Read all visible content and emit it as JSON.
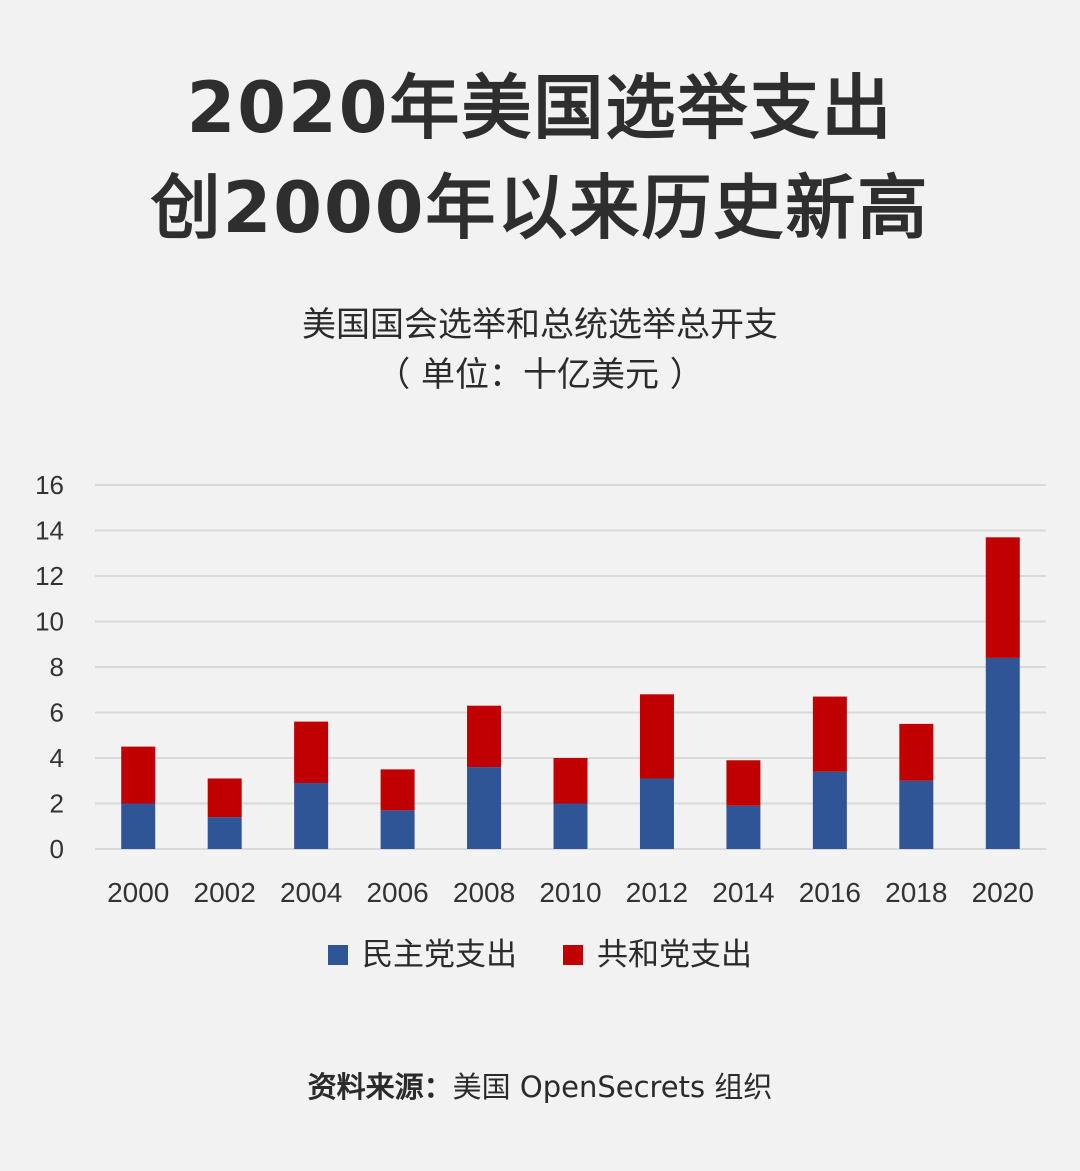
{
  "headline": {
    "line1": "2020年美国选举支出",
    "line2": "创2000年以来历史新高"
  },
  "subtitle": {
    "line1": "美国国会选举和总统选举总开支",
    "line2": "（ 单位：十亿美元 ）"
  },
  "source": {
    "label": "资料来源：",
    "text": "美国 OpenSecrets 组织"
  },
  "colors": {
    "democrat": "#2f5597",
    "republican": "#c00000",
    "grid": "#d9d9d9",
    "background": "#f2f2f2"
  },
  "chart_data": {
    "type": "bar",
    "stacked": true,
    "categories": [
      "2000",
      "2002",
      "2004",
      "2006",
      "2008",
      "2010",
      "2012",
      "2014",
      "2016",
      "2018",
      "2020"
    ],
    "series": [
      {
        "name": "民主党支出",
        "color": "#2f5597",
        "values": [
          2.0,
          1.4,
          2.9,
          1.7,
          3.6,
          2.0,
          3.1,
          1.9,
          3.4,
          3.0,
          8.4
        ]
      },
      {
        "name": "共和党支出",
        "color": "#c00000",
        "values": [
          2.5,
          1.7,
          2.7,
          1.8,
          2.7,
          2.0,
          3.7,
          2.0,
          3.3,
          2.5,
          5.3
        ]
      }
    ],
    "yticks": [
      "0",
      "2",
      "4",
      "6",
      "8",
      "10",
      "12",
      "14",
      "16"
    ],
    "ylim": [
      0,
      16
    ],
    "grid": true,
    "legend_position": "bottom"
  }
}
